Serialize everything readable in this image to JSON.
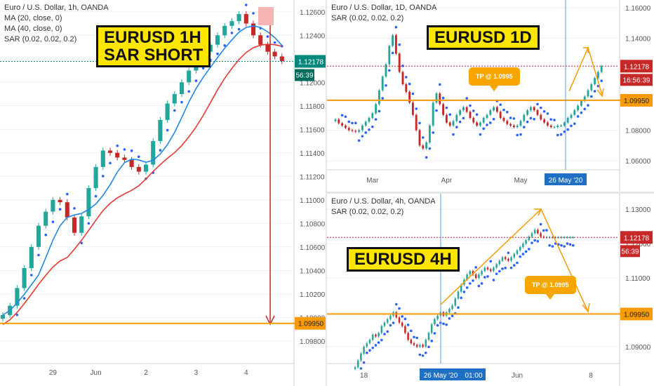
{
  "colors": {
    "up": "#26a69a",
    "down": "#c62828",
    "sar": "#2962ff",
    "ma20": "#1e88e5",
    "ma40": "#e53935",
    "orange": "#f89b07",
    "price": "#00897b",
    "priceRed": "#c62828",
    "countdown": "#006b5b"
  },
  "chart_data": [
    {
      "type": "candlestick",
      "title_box": "EURUSD 1H\nSAR SHORT",
      "legend": [
        "Euro / U.S. Dollar, 1h, OANDA",
        "MA (20, close, 0)",
        "MA (40, close, 0)",
        "SAR (0.02, 0.02, 0.2)"
      ],
      "ylim": [
        1.0962,
        1.127
      ],
      "y_ticks": [
        "1.12600",
        "1.12400",
        "1.12200",
        "1.12000",
        "1.11800",
        "1.11600",
        "1.11400",
        "1.11200",
        "1.11000",
        "1.10800",
        "1.10600",
        "1.10400",
        "1.10200",
        "1.10000",
        "1.09800"
      ],
      "y_tick_values": [
        1.126,
        1.124,
        1.122,
        1.12,
        1.118,
        1.116,
        1.114,
        1.112,
        1.11,
        1.108,
        1.106,
        1.104,
        1.102,
        1.1,
        1.098
      ],
      "x_ticks": [
        "29",
        "Jun",
        "2",
        "3",
        "4"
      ],
      "x_tick_index": [
        7,
        13,
        20,
        27,
        34
      ],
      "n_bars": 40,
      "close": [
        1.1002,
        1.101,
        1.1025,
        1.1042,
        1.106,
        1.1078,
        1.109,
        1.11,
        1.1098,
        1.1085,
        1.1072,
        1.1086,
        1.111,
        1.1128,
        1.1142,
        1.114,
        1.1136,
        1.1134,
        1.1128,
        1.1124,
        1.113,
        1.115,
        1.1168,
        1.1182,
        1.119,
        1.12,
        1.121,
        1.1218,
        1.1226,
        1.1232,
        1.124,
        1.1248,
        1.1252,
        1.1258,
        1.125,
        1.124,
        1.1232,
        1.1226,
        1.1222,
        1.1218
      ],
      "ma20_end": 1.1222,
      "ma40_end": 1.1205,
      "horizontal_level": 1.0995,
      "price_label": "1.12178",
      "price_value": 1.12178,
      "countdown": "56:39",
      "level_label": "1.09950"
    },
    {
      "type": "candlestick",
      "title_box": "EURUSD 1D",
      "legend": [
        "Euro / U.S. Dollar, 1D, OANDA",
        "SAR (0.02, 0.02, 0.2)"
      ],
      "ylim": [
        1.055,
        1.165
      ],
      "y_ticks": [
        "1.16000",
        "1.14000",
        "1.12000",
        "1.10000",
        "1.08000",
        "1.06000"
      ],
      "y_tick_values": [
        1.16,
        1.14,
        1.12,
        1.1,
        1.08,
        1.06
      ],
      "x_ticks": [
        "Mar",
        "Apr",
        "May"
      ],
      "x_tick_index": [
        11,
        33,
        55
      ],
      "n_bars": 80,
      "close": [
        1.087,
        1.0845,
        1.083,
        1.0815,
        1.08,
        1.0795,
        1.079,
        1.08,
        1.083,
        1.0855,
        1.088,
        1.091,
        1.097,
        1.106,
        1.115,
        1.123,
        1.135,
        1.142,
        1.13,
        1.118,
        1.11,
        1.105,
        1.098,
        1.09,
        1.08,
        1.07,
        1.068,
        1.072,
        1.083,
        1.098,
        1.104,
        1.097,
        1.09,
        1.085,
        1.083,
        1.086,
        1.09,
        1.093,
        1.095,
        1.092,
        1.088,
        1.085,
        1.083,
        1.085,
        1.088,
        1.09,
        1.093,
        1.095,
        1.092,
        1.088,
        1.086,
        1.084,
        1.083,
        1.082,
        1.083,
        1.086,
        1.09,
        1.093,
        1.095,
        1.093,
        1.09,
        1.087,
        1.085,
        1.083,
        1.082,
        1.082,
        1.083,
        1.083,
        1.085,
        1.088,
        1.09,
        1.093,
        1.096,
        1.099,
        1.102,
        1.106,
        1.11,
        1.114,
        1.118,
        1.1218
      ],
      "horizontal_level": 1.0995,
      "tp_label": "TP @ 1.0995",
      "price_label": "1.12178",
      "countdown": "16:56:39",
      "level_label": "1.09950",
      "date_marker": "26 May '20"
    },
    {
      "type": "candlestick",
      "title_box": "EURUSD 4H",
      "legend": [
        "Euro / U.S. Dollar, 4h, OANDA",
        "SAR (0.02, 0.02, 0.2)"
      ],
      "ylim": [
        1.0855,
        1.1345
      ],
      "y_ticks": [
        "1.13000",
        "1.12000",
        "1.11000",
        "1.10000",
        "1.09000"
      ],
      "y_tick_values": [
        1.13,
        1.12,
        1.11,
        1.1,
        1.09
      ],
      "x_ticks": [
        "18",
        "Jun",
        "8"
      ],
      "x_tick_index": [
        3,
        55,
        80
      ],
      "n_bars": 75,
      "close": [
        1.084,
        1.086,
        1.088,
        1.09,
        1.091,
        1.092,
        1.0935,
        1.093,
        1.094,
        1.096,
        1.097,
        1.098,
        1.099,
        1.1,
        1.0985,
        1.097,
        1.096,
        1.094,
        1.092,
        1.091,
        1.0905,
        1.09,
        1.0905,
        1.09,
        1.092,
        1.094,
        1.0965,
        1.098,
        1.099,
        1.1,
        1.099,
        1.1,
        1.101,
        1.102,
        1.104,
        1.106,
        1.108,
        1.1095,
        1.111,
        1.112,
        1.111,
        1.11,
        1.111,
        1.112,
        1.113,
        1.1125,
        1.112,
        1.113,
        1.114,
        1.115,
        1.116,
        1.1155,
        1.115,
        1.116,
        1.117,
        1.118,
        1.119,
        1.12,
        1.121,
        1.122,
        1.123,
        1.124,
        1.123,
        1.122,
        1.1218,
        1.1218,
        1.1218,
        1.1218,
        1.1218,
        1.1218,
        1.1218,
        1.1218,
        1.1218,
        1.1218,
        1.1218
      ],
      "horizontal_level": 1.0995,
      "tp_label": "TP @ 1.0995",
      "price_label": "1.12178",
      "countdown": "56:39",
      "level_label": "1.09950",
      "date_marker": "26 May '20",
      "time_marker": "01:00"
    }
  ]
}
